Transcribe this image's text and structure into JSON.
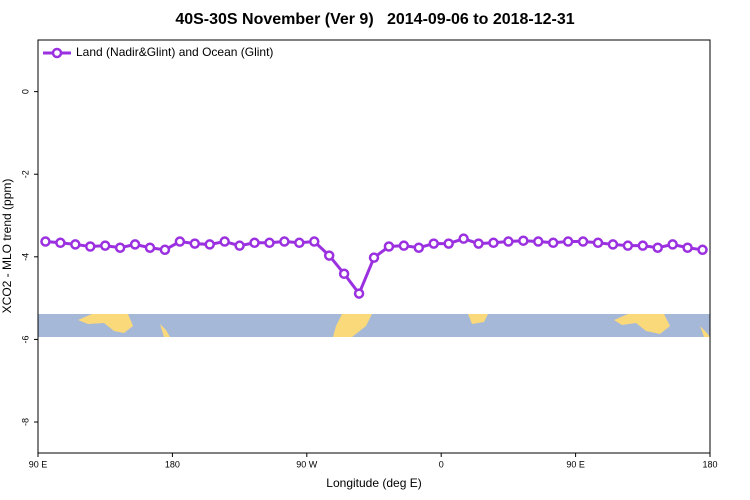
{
  "chart_data": {
    "type": "line",
    "title": "40S-30S November (Ver 9)   2014-09-06 to 2018-12-31",
    "x_label": "Longitude (deg E)",
    "y_label": "XCO2 - MLO trend (ppm)",
    "xlim": [
      90,
      540
    ],
    "ylim": [
      -8.75,
      1.25
    ],
    "xticks": [
      {
        "value": 90,
        "label": "90 E"
      },
      180,
      {
        "value": 270,
        "label": "90 W"
      },
      {
        "value": 360,
        "label": "0"
      },
      {
        "value": 450,
        "label": "90 E"
      },
      {
        "value": 540,
        "label": "180"
      }
    ],
    "yticks": [
      0,
      -2,
      -4,
      -6,
      -8
    ],
    "legend": "top-left",
    "x": [
      95,
      105,
      115,
      125,
      135,
      145,
      155,
      165,
      175,
      185,
      195,
      205,
      215,
      225,
      235,
      245,
      255,
      265,
      275,
      285,
      295,
      305,
      315,
      325,
      335,
      345,
      355,
      365,
      375,
      385,
      395,
      405,
      415,
      425,
      435,
      445,
      455,
      465,
      475,
      485,
      495,
      505,
      515,
      525,
      535
    ],
    "series": [
      {
        "name": "Land (Nadir&Glint) and Ocean (Glint)",
        "color": "#9b30e0",
        "values": [
          -3.63,
          -3.66,
          -3.7,
          -3.75,
          -3.73,
          -3.78,
          -3.7,
          -3.78,
          -3.83,
          -3.63,
          -3.68,
          -3.7,
          -3.63,
          -3.73,
          -3.66,
          -3.66,
          -3.63,
          -3.66,
          -3.63,
          -3.97,
          -4.41,
          -4.89,
          -4.02,
          -3.75,
          -3.73,
          -3.78,
          -3.68,
          -3.68,
          -3.56,
          -3.68,
          -3.66,
          -3.63,
          -3.61,
          -3.63,
          -3.66,
          -3.63,
          -3.63,
          -3.66,
          -3.7,
          -3.73,
          -3.73,
          -3.78,
          -3.7,
          -3.78,
          -3.83
        ]
      }
    ]
  }
}
